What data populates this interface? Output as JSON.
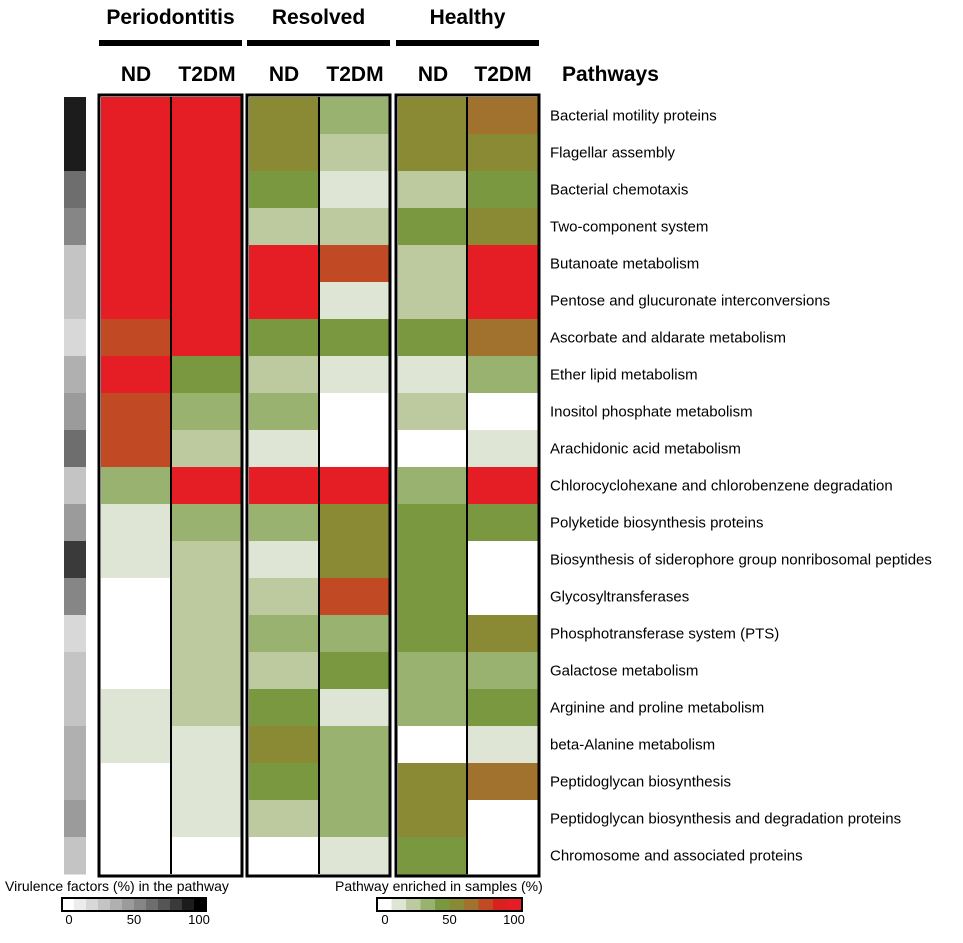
{
  "chart_data": {
    "type": "heatmap",
    "groups": [
      "Periodontitis",
      "Resolved",
      "Healthy"
    ],
    "columns": [
      "ND",
      "T2DM",
      "ND",
      "T2DM",
      "ND",
      "T2DM"
    ],
    "pathways_header": "Pathways",
    "rows": [
      "Bacterial motility proteins",
      "Flagellar assembly",
      "Bacterial chemotaxis",
      "Two-component system",
      "Butanoate metabolism",
      "Pentose and glucuronate interconversions",
      "Ascorbate and aldarate metabolism",
      "Ether lipid metabolism",
      "Inositol phosphate metabolism",
      "Arachidonic acid metabolism",
      "Chlorocyclohexane and chlorobenzene degradation",
      "Polyketide biosynthesis proteins",
      "Biosynthesis of siderophore group nonribosomal peptides",
      "Glycosyltransferases",
      "Phosphotransferase system (PTS)",
      "Galactose metabolism",
      "Arginine and proline metabolism",
      "beta-Alanine metabolism",
      "Peptidoglycan biosynthesis",
      "Peptidoglycan biosynthesis and degradation proteins",
      "Chromosome and associated proteins"
    ],
    "enrichment_values": [
      [
        100,
        100,
        60,
        35,
        60,
        70
      ],
      [
        100,
        100,
        60,
        25,
        60,
        55
      ],
      [
        100,
        100,
        45,
        15,
        25,
        40
      ],
      [
        100,
        100,
        25,
        25,
        45,
        55
      ],
      [
        100,
        100,
        100,
        75,
        25,
        100
      ],
      [
        100,
        100,
        100,
        15,
        25,
        100
      ],
      [
        75,
        100,
        45,
        45,
        45,
        70
      ],
      [
        100,
        45,
        25,
        15,
        15,
        30
      ],
      [
        75,
        35,
        35,
        0,
        25,
        0
      ],
      [
        75,
        25,
        15,
        0,
        0,
        15
      ],
      [
        35,
        100,
        100,
        100,
        35,
        100
      ],
      [
        15,
        35,
        35,
        60,
        45,
        40
      ],
      [
        15,
        25,
        15,
        60,
        45,
        0
      ],
      [
        0,
        25,
        25,
        75,
        45,
        0
      ],
      [
        0,
        25,
        35,
        35,
        45,
        55
      ],
      [
        0,
        25,
        25,
        45,
        35,
        30
      ],
      [
        15,
        25,
        45,
        15,
        35,
        40
      ],
      [
        15,
        15,
        60,
        35,
        0,
        15
      ],
      [
        0,
        15,
        45,
        35,
        60,
        70
      ],
      [
        0,
        15,
        25,
        35,
        60,
        0
      ],
      [
        0,
        0,
        0,
        15,
        45,
        0
      ]
    ],
    "virulence_values": [
      90,
      95,
      65,
      50,
      30,
      30,
      15,
      40,
      45,
      60,
      25,
      45,
      85,
      55,
      20,
      30,
      30,
      40,
      35,
      45,
      30
    ],
    "virulence_legend": {
      "title": "Virulence factors (%) in the pathway",
      "ticks": [
        "0",
        "50",
        "100"
      ],
      "range": [
        0,
        100
      ]
    },
    "enrichment_legend": {
      "title": "Pathway enriched in samples (%)",
      "ticks": [
        "0",
        "50",
        "100"
      ],
      "range": [
        0,
        100
      ]
    },
    "gray_scale": [
      "#ffffff",
      "#ececec",
      "#d8d8d8",
      "#c4c4c4",
      "#b0b0b0",
      "#9b9b9b",
      "#868686",
      "#6e6e6e",
      "#555555",
      "#3a3a3a",
      "#1c1c1c",
      "#000000"
    ],
    "enrichment_scale": [
      "#ffffff",
      "#dfe5d4",
      "#bdcaa0",
      "#9ab26f",
      "#7a983f",
      "#8a8a35",
      "#a0722e",
      "#c14a24",
      "#d92220",
      "#e41e24"
    ]
  }
}
